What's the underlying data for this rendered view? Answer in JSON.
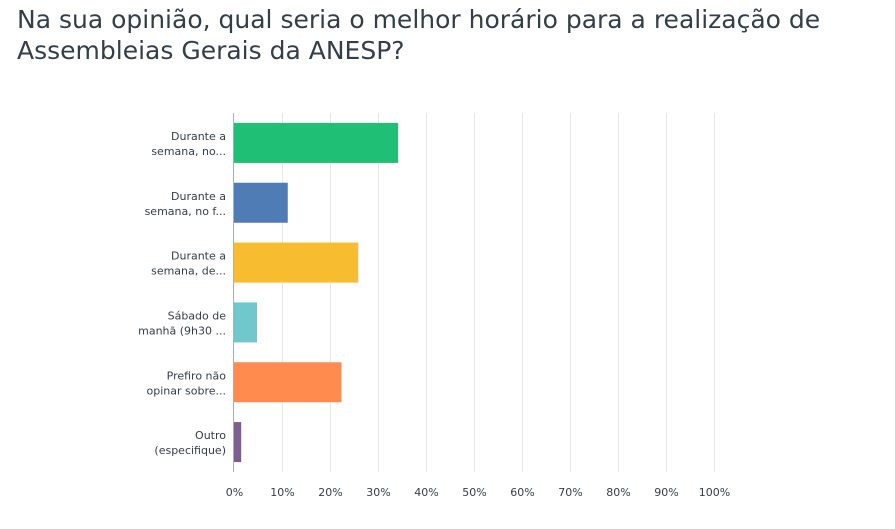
{
  "chart_data": {
    "type": "bar",
    "orientation": "horizontal",
    "title": "Na sua opinião, qual seria o melhor horário para a realização de Assembleias Gerais da ANESP?",
    "categories": [
      [
        "Durante a",
        "semana, no..."
      ],
      [
        "Durante a",
        "semana, no f..."
      ],
      [
        "Durante a",
        "semana, de..."
      ],
      [
        "Sábado de",
        "manhã (9h30 ..."
      ],
      [
        "Prefiro não",
        "opinar sobre..."
      ],
      [
        "Outro",
        "(especifique)"
      ]
    ],
    "values": [
      34.2,
      11.2,
      25.9,
      4.8,
      22.4,
      1.5
    ],
    "colors": [
      "#1fbf75",
      "#507cb6",
      "#f7bc2f",
      "#71c8cc",
      "#ff8b4f",
      "#7c5f90"
    ],
    "xlim": [
      0,
      100
    ],
    "ticks": [
      "0%",
      "10%",
      "20%",
      "30%",
      "40%",
      "50%",
      "60%",
      "70%",
      "80%",
      "90%",
      "100%"
    ],
    "tick_values": [
      0,
      10,
      20,
      30,
      40,
      50,
      60,
      70,
      80,
      90,
      100
    ],
    "grid": true,
    "xlabel": "",
    "ylabel": ""
  }
}
